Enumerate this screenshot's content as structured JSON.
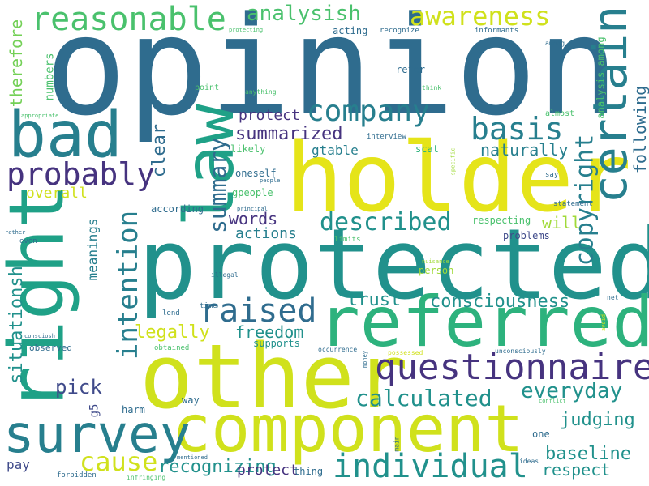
{
  "palette": {
    "purple": "#46337f",
    "indigo": "#3f4a8a",
    "blue": "#365c8d",
    "steel": "#2f6c8e",
    "teal": "#277f8e",
    "teal2": "#21918c",
    "green": "#1fa187",
    "green2": "#2db27d",
    "lime": "#4ac16d",
    "lime2": "#73d056",
    "yellowgreen": "#a0da39",
    "yellow": "#d0e11c",
    "yellow2": "#e5e419"
  },
  "words": [
    {
      "text": "opinion"
    },
    {
      "text": "protected"
    },
    {
      "text": "holder"
    },
    {
      "text": "other"
    },
    {
      "text": "right"
    },
    {
      "text": "component"
    },
    {
      "text": "referred"
    },
    {
      "text": "law"
    },
    {
      "text": "bad"
    },
    {
      "text": "certain"
    },
    {
      "text": "survey"
    },
    {
      "text": "questionnaire"
    },
    {
      "text": "reasonable"
    },
    {
      "text": "company"
    },
    {
      "text": "probably"
    },
    {
      "text": "individual"
    },
    {
      "text": "raised"
    },
    {
      "text": "basis"
    },
    {
      "text": "copyright"
    },
    {
      "text": "awareness"
    },
    {
      "text": "intention"
    },
    {
      "text": "described"
    },
    {
      "text": "calculated"
    },
    {
      "text": "summary"
    },
    {
      "text": "cause"
    },
    {
      "text": "analysish"
    },
    {
      "text": "everyday"
    },
    {
      "text": "consciousness"
    },
    {
      "text": "summarized"
    },
    {
      "text": "recognizing"
    },
    {
      "text": "situationsh"
    },
    {
      "text": "judging"
    },
    {
      "text": "baseline"
    },
    {
      "text": "respect"
    },
    {
      "text": "legally"
    },
    {
      "text": "freedom"
    },
    {
      "text": "words"
    },
    {
      "text": "trust"
    },
    {
      "text": "pick"
    },
    {
      "text": "clear"
    },
    {
      "text": "following"
    },
    {
      "text": "therefore"
    },
    {
      "text": "naturally"
    },
    {
      "text": "actions"
    },
    {
      "text": "will"
    },
    {
      "text": "protect"
    },
    {
      "text": "protect"
    },
    {
      "text": "gtable"
    },
    {
      "text": "numbers"
    },
    {
      "text": "overall"
    },
    {
      "text": "meanings"
    },
    {
      "text": "analysis among"
    },
    {
      "text": "pay"
    },
    {
      "text": "g5"
    },
    {
      "text": "acting"
    },
    {
      "text": "refer"
    },
    {
      "text": "likely"
    },
    {
      "text": "oneself"
    },
    {
      "text": "gpeople"
    },
    {
      "text": "according"
    },
    {
      "text": "scat"
    },
    {
      "text": "respecting"
    },
    {
      "text": "problems"
    },
    {
      "text": "person"
    },
    {
      "text": "supports"
    },
    {
      "text": "observed"
    },
    {
      "text": "harm"
    },
    {
      "text": "way"
    },
    {
      "text": "thing"
    },
    {
      "text": "one"
    },
    {
      "text": "interview"
    },
    {
      "text": "point"
    },
    {
      "text": "statement"
    },
    {
      "text": "almost"
    },
    {
      "text": "say"
    },
    {
      "text": "recognize"
    },
    {
      "text": "informants"
    },
    {
      "text": "protecting"
    },
    {
      "text": "among"
    },
    {
      "text": "think"
    },
    {
      "text": "anything"
    },
    {
      "text": "appropriate"
    },
    {
      "text": "specific"
    },
    {
      "text": "people"
    },
    {
      "text": "principal"
    },
    {
      "text": "limits"
    },
    {
      "text": "illegal"
    },
    {
      "text": "lend"
    },
    {
      "text": "time"
    },
    {
      "text": "obtained"
    },
    {
      "text": "money"
    },
    {
      "text": "occurrence"
    },
    {
      "text": "possessed"
    },
    {
      "text": "unconsciously"
    },
    {
      "text": "conflict"
    },
    {
      "text": "nuisance"
    },
    {
      "text": "rather"
    },
    {
      "text": "even"
    },
    {
      "text": "consciosh"
    },
    {
      "text": "mentioned"
    },
    {
      "text": "forbidden"
    },
    {
      "text": "infringing"
    },
    {
      "text": "main"
    },
    {
      "text": "ideas"
    },
    {
      "text": "avoid"
    },
    {
      "text": "net"
    }
  ]
}
